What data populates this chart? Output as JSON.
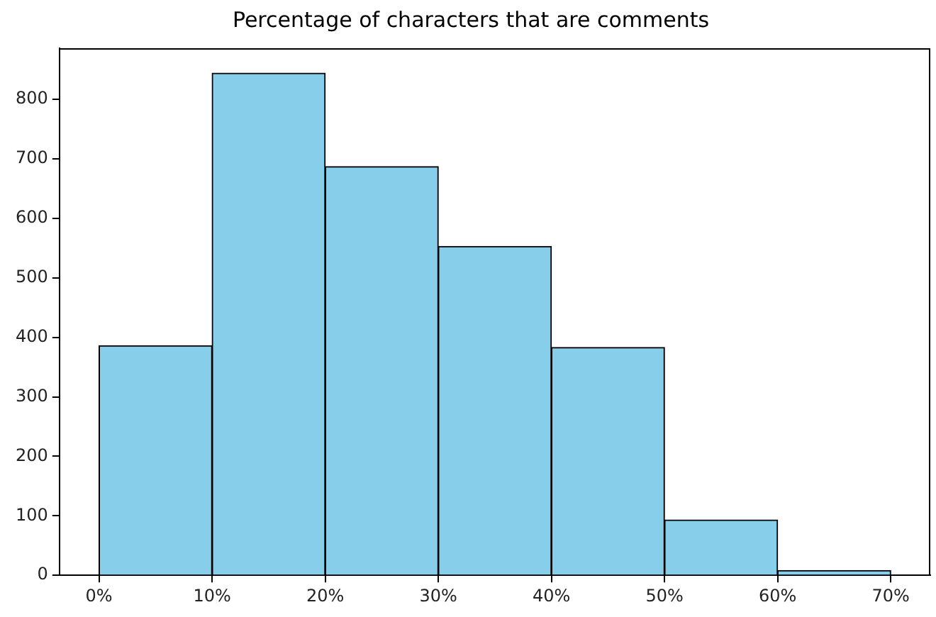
{
  "chart_data": {
    "type": "histogram",
    "title": "Percentage of characters that are comments",
    "bins": [
      0,
      10,
      20,
      30,
      40,
      50,
      60,
      70
    ],
    "values": [
      386,
      844,
      687,
      553,
      383,
      93,
      8
    ],
    "color": "#87ceeb",
    "xlim": [
      -3.5,
      73.5
    ],
    "xticks": [
      {
        "value": 0,
        "label": "0%"
      },
      {
        "value": 10,
        "label": "10%"
      },
      {
        "value": 20,
        "label": "20%"
      },
      {
        "value": 30,
        "label": "30%"
      },
      {
        "value": 40,
        "label": "40%"
      },
      {
        "value": 50,
        "label": "50%"
      },
      {
        "value": 60,
        "label": "60%"
      },
      {
        "value": 70,
        "label": "70%"
      }
    ],
    "ylim": [
      0,
      886
    ],
    "yticks": [
      0,
      100,
      200,
      300,
      400,
      500,
      600,
      700,
      800
    ],
    "grid": false,
    "legend": false
  }
}
